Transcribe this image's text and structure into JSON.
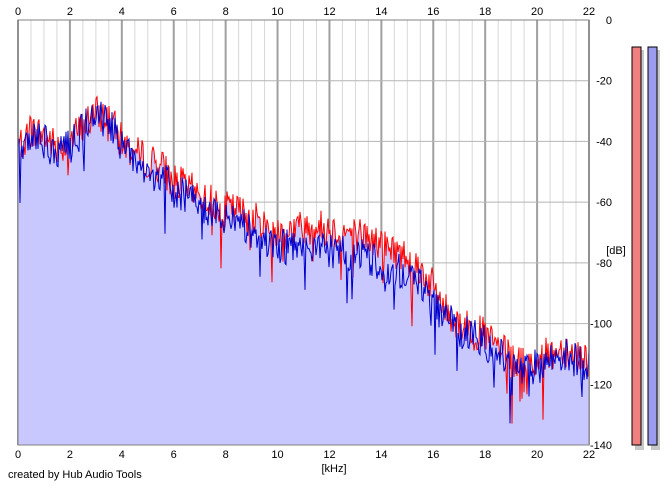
{
  "chart_data": {
    "type": "area",
    "xlabel": "[kHz]",
    "ylabel": "[dB]",
    "xlim": [
      0,
      22
    ],
    "ylim": [
      -140,
      0
    ],
    "x_ticks": [
      "0",
      "2",
      "4",
      "6",
      "8",
      "10",
      "12",
      "14",
      "16",
      "18",
      "20",
      "22"
    ],
    "y_ticks": [
      "0",
      "-20",
      "-40",
      "-60",
      "-80",
      "-100",
      "-120",
      "-140"
    ],
    "grid": true,
    "series": [
      {
        "color": "#ff0000",
        "x": [
          0,
          0.5,
          1,
          1.5,
          2,
          2.5,
          3,
          3.5,
          4,
          4.5,
          5,
          5.5,
          6,
          6.5,
          7,
          7.5,
          8,
          8.5,
          9,
          9.5,
          10,
          10.5,
          11,
          11.5,
          12,
          12.5,
          13,
          13.5,
          14,
          14.5,
          15,
          15.5,
          16,
          16.5,
          17,
          17.5,
          18,
          18.5,
          19,
          19.5,
          20,
          20.5,
          21,
          21.5,
          22
        ],
        "values": [
          -42,
          -36,
          -38,
          -42,
          -40,
          -35,
          -31,
          -32,
          -40,
          -44,
          -46,
          -48,
          -53,
          -55,
          -58,
          -60,
          -62,
          -63,
          -65,
          -68,
          -70,
          -69,
          -68,
          -68,
          -69,
          -70,
          -70,
          -72,
          -74,
          -76,
          -78,
          -82,
          -88,
          -96,
          -100,
          -102,
          -104,
          -108,
          -112,
          -114,
          -112,
          -110,
          -108,
          -110,
          -112
        ]
      },
      {
        "color": "#0000cc",
        "x": [
          0,
          0.5,
          1,
          1.5,
          2,
          2.5,
          3,
          3.5,
          4,
          4.5,
          5,
          5.5,
          6,
          6.5,
          7,
          7.5,
          8,
          8.5,
          9,
          9.5,
          10,
          10.5,
          11,
          11.5,
          12,
          12.5,
          13,
          13.5,
          14,
          14.5,
          15,
          15.5,
          16,
          16.5,
          17,
          17.5,
          18,
          18.5,
          19,
          19.5,
          20,
          20.5,
          21,
          21.5,
          22
        ],
        "values": [
          -44,
          -38,
          -40,
          -44,
          -42,
          -36,
          -30,
          -33,
          -42,
          -47,
          -50,
          -52,
          -56,
          -58,
          -61,
          -63,
          -65,
          -67,
          -70,
          -72,
          -74,
          -75,
          -76,
          -76,
          -76,
          -77,
          -77,
          -78,
          -80,
          -82,
          -84,
          -87,
          -92,
          -98,
          -102,
          -104,
          -106,
          -110,
          -114,
          -116,
          -114,
          -112,
          -110,
          -112,
          -113
        ]
      }
    ],
    "meters": [
      {
        "color": "#f08080"
      },
      {
        "color": "#9b9bef"
      }
    ],
    "fill_color": "#c8c8ff"
  },
  "credit": "created by Hub Audio Tools"
}
